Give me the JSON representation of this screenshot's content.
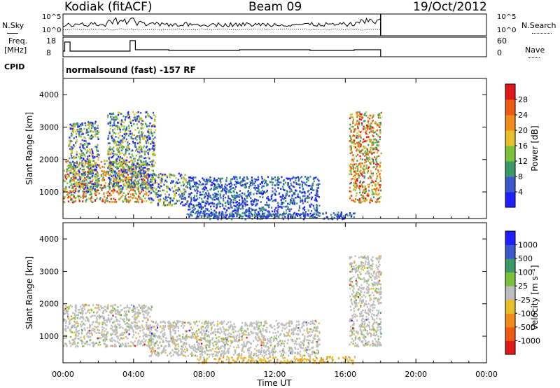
{
  "header": {
    "station": "Kodiak (fitACF)",
    "beam": "Beam 09",
    "date": "19/Oct/2012"
  },
  "summary": {
    "nsky_label": "N.Sky",
    "nsearch_label": "N.Search",
    "freq_label": "Freq.",
    "freq_unit": "[MHz]",
    "nave_label": "Nave",
    "cpid_label": "CPID",
    "cpid_text": "normalsound (fast) -157 RF",
    "noise_ticks": [
      "10^5",
      "10^0"
    ],
    "freq_ticks": [
      "18",
      "8"
    ],
    "nave_ticks": [
      "60",
      "0"
    ]
  },
  "colors": {
    "power": [
      "#1e1eff",
      "#3a5acc",
      "#3c9a6a",
      "#7ac23a",
      "#e6c02a",
      "#f08c1a",
      "#ee5a14",
      "#e01818"
    ],
    "velocity": [
      "#e01818",
      "#ee5a14",
      "#f08c1a",
      "#e6c02a",
      "#bdbdbd",
      "#7ac23a",
      "#3c9a6a",
      "#3a5acc",
      "#1e1eff"
    ]
  },
  "chart_data": [
    {
      "type": "heatmap",
      "name": "power",
      "xlabel": "Time UT",
      "ylabel": "Slant Range [km]",
      "x_ticks": [
        "00:00",
        "04:00",
        "08:00",
        "12:00",
        "16:00",
        "20:00",
        "00:00"
      ],
      "x_range_hours": [
        0,
        24
      ],
      "ylim": [
        180,
        4500
      ],
      "y_ticks": [
        1000,
        2000,
        3000,
        4000
      ],
      "colorbar_label": "Power [dB]",
      "colorbar_ticks": [
        "28",
        "24",
        "20",
        "16",
        "12",
        "8",
        "4"
      ],
      "colorbar_range": [
        0,
        30
      ],
      "data_end_hour": 18.0,
      "echo_regions": [
        {
          "t0": 0.0,
          "t1": 4.8,
          "r0": 700,
          "r1": 2000,
          "level": "high"
        },
        {
          "t0": 0.3,
          "t1": 2.0,
          "r0": 1000,
          "r1": 3200,
          "level": "mid"
        },
        {
          "t0": 2.5,
          "t1": 5.2,
          "r0": 1100,
          "r1": 3500,
          "level": "mid"
        },
        {
          "t0": 4.8,
          "t1": 7.0,
          "r0": 600,
          "r1": 1600,
          "level": "mid"
        },
        {
          "t0": 7.0,
          "t1": 14.5,
          "r0": 250,
          "r1": 1500,
          "level": "low"
        },
        {
          "t0": 7.5,
          "t1": 16.5,
          "r0": 180,
          "r1": 400,
          "level": "low"
        },
        {
          "t0": 16.2,
          "t1": 18.0,
          "r0": 700,
          "r1": 3500,
          "level": "high"
        }
      ]
    },
    {
      "type": "heatmap",
      "name": "velocity",
      "xlabel": "Time UT",
      "ylabel": "Slant Range [km]",
      "x_ticks": [
        "00:00",
        "04:00",
        "08:00",
        "12:00",
        "16:00",
        "20:00",
        "00:00"
      ],
      "x_range_hours": [
        0,
        24
      ],
      "ylim": [
        180,
        4500
      ],
      "y_ticks": [
        1000,
        2000,
        3000,
        4000
      ],
      "colorbar_label": "Velocity [m s⁻¹]",
      "colorbar_ticks": [
        "1000",
        "500",
        "100",
        "25",
        "-25",
        "-100",
        "-500",
        "-1000"
      ],
      "data_end_hour": 18.0,
      "echo_regions": [
        {
          "t0": 0.0,
          "t1": 5.0,
          "r0": 700,
          "r1": 2000,
          "level": "near-zero"
        },
        {
          "t0": 4.8,
          "t1": 14.5,
          "r0": 400,
          "r1": 1500,
          "level": "near-zero"
        },
        {
          "t0": 7.5,
          "t1": 16.5,
          "r0": 180,
          "r1": 400,
          "level": "negative"
        },
        {
          "t0": 16.2,
          "t1": 18.0,
          "r0": 700,
          "r1": 3500,
          "level": "near-zero"
        }
      ]
    }
  ]
}
